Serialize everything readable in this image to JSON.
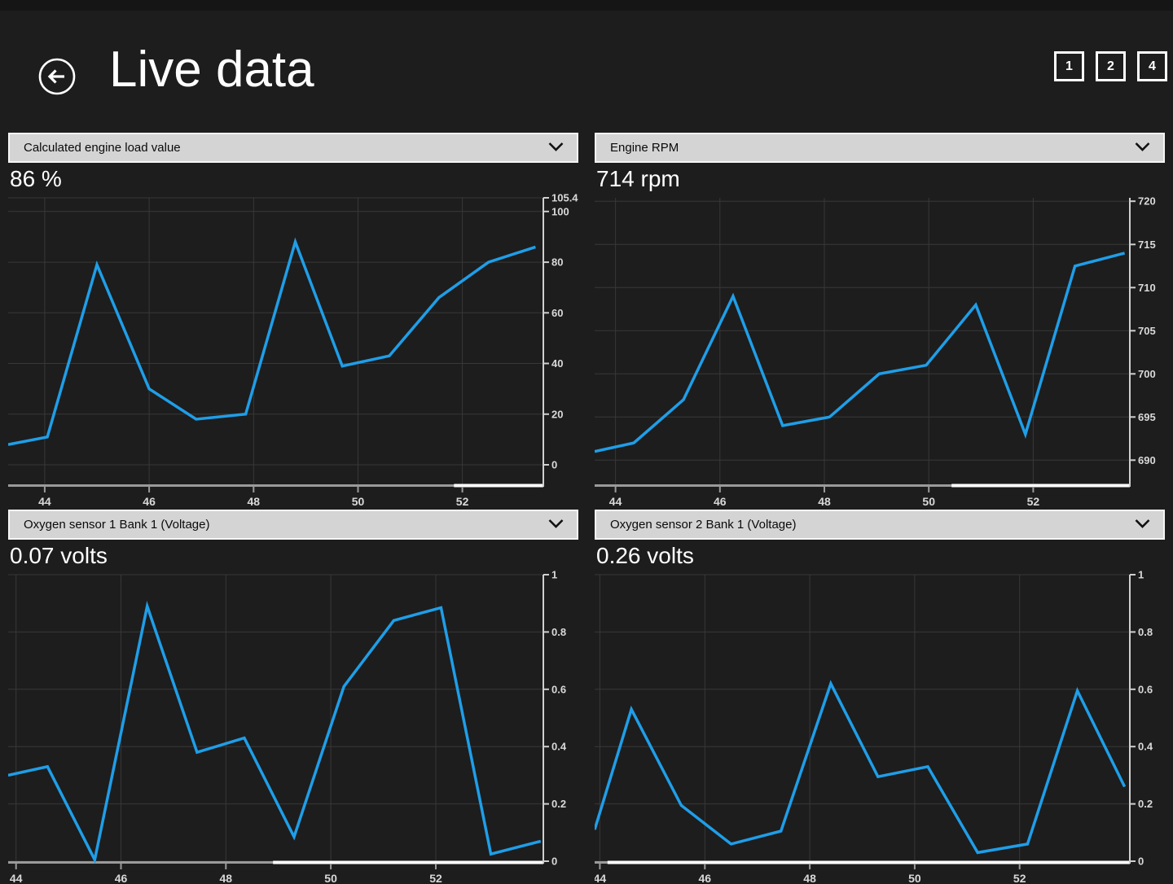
{
  "header": {
    "title": "Live data",
    "back_button_label": "back",
    "layout_buttons": [
      "1",
      "2",
      "4"
    ]
  },
  "colors": {
    "background": "#1d1d1d",
    "top_strip": "#151515",
    "accent_line": "#1f9ee8",
    "dropdown_bg": "#d4d4d4",
    "grid_line": "#383838",
    "axis_line": "#cfcfcf",
    "axis_bottom": "#9a9a9a",
    "scrollbar": "#ffffff",
    "tick_label": "#d9d9d9"
  },
  "chart_data": [
    {
      "type": "line",
      "title": "Calculated engine load value",
      "current_value": "86 %",
      "unit": "%",
      "x": [
        43.3,
        44.05,
        45.0,
        46.0,
        46.9,
        47.85,
        48.8,
        49.7,
        50.6,
        51.55,
        52.5,
        53.4
      ],
      "y": [
        8,
        11,
        79,
        30,
        18,
        20,
        88,
        39,
        43,
        66,
        80,
        86
      ],
      "xlim": [
        43.3,
        53.55
      ],
      "ylim": [
        -7.7,
        105.4
      ],
      "xticks": [
        44,
        46,
        48,
        50,
        52
      ],
      "yticks": [
        0,
        20,
        40,
        60,
        80,
        100,
        105.4
      ],
      "ytick_labels": [
        "0",
        "20",
        "40",
        "60",
        "80",
        "100",
        "105.4"
      ],
      "scrollbar_start": 0.833,
      "grid": true,
      "legend": "none"
    },
    {
      "type": "line",
      "title": "Engine RPM",
      "current_value": "714 rpm",
      "unit": "rpm",
      "x": [
        43.6,
        44.35,
        45.3,
        46.25,
        47.2,
        48.1,
        49.05,
        49.95,
        50.9,
        51.85,
        52.8,
        53.75
      ],
      "y": [
        691,
        692,
        697,
        709,
        694,
        695,
        700,
        701,
        708,
        693,
        712.5,
        714
      ],
      "xlim": [
        43.6,
        53.85
      ],
      "ylim": [
        687.2,
        720.4
      ],
      "xticks": [
        44,
        46,
        48,
        50,
        52
      ],
      "yticks": [
        690,
        695,
        700,
        705,
        710,
        715,
        720
      ],
      "ytick_labels": [
        "690",
        "695",
        "700",
        "705",
        "710",
        "715",
        "720"
      ],
      "scrollbar_start": 0.667,
      "grid": true,
      "legend": "none"
    },
    {
      "type": "line",
      "title": "Oxygen sensor 1 Bank 1 (Voltage)",
      "current_value": "0.07 volts",
      "unit": "volts",
      "x": [
        43.85,
        44.6,
        45.5,
        46.5,
        47.45,
        48.35,
        49.3,
        50.25,
        51.2,
        52.1,
        53.05,
        54.0
      ],
      "y": [
        0.3,
        0.33,
        0.005,
        0.89,
        0.38,
        0.43,
        0.085,
        0.61,
        0.84,
        0.885,
        0.025,
        0.07
      ],
      "xlim": [
        43.85,
        54.05
      ],
      "ylim": [
        0,
        1
      ],
      "xticks": [
        44,
        46,
        48,
        50,
        52
      ],
      "yticks": [
        0,
        0.2,
        0.4,
        0.6,
        0.8,
        1
      ],
      "ytick_labels": [
        "0",
        "0.2",
        "0.4",
        "0.6",
        "0.8",
        "1"
      ],
      "scrollbar_start": 0.495,
      "grid": true,
      "legend": "none"
    },
    {
      "type": "line",
      "title": "Oxygen sensor 2 Bank 1 (Voltage)",
      "current_value": "0.26 volts",
      "unit": "volts",
      "x": [
        43.9,
        44.6,
        45.55,
        46.5,
        47.45,
        48.4,
        49.3,
        50.25,
        51.2,
        52.15,
        53.1,
        54.0
      ],
      "y": [
        0.11,
        0.53,
        0.195,
        0.06,
        0.105,
        0.62,
        0.295,
        0.33,
        0.03,
        0.06,
        0.595,
        0.26
      ],
      "xlim": [
        43.9,
        54.1
      ],
      "ylim": [
        0,
        1
      ],
      "xticks": [
        44,
        46,
        48,
        50,
        52
      ],
      "yticks": [
        0,
        0.2,
        0.4,
        0.6,
        0.8,
        1
      ],
      "ytick_labels": [
        "0",
        "0.2",
        "0.4",
        "0.6",
        "0.8",
        "1"
      ],
      "scrollbar_start": 0.024,
      "grid": true,
      "legend": "none"
    }
  ]
}
